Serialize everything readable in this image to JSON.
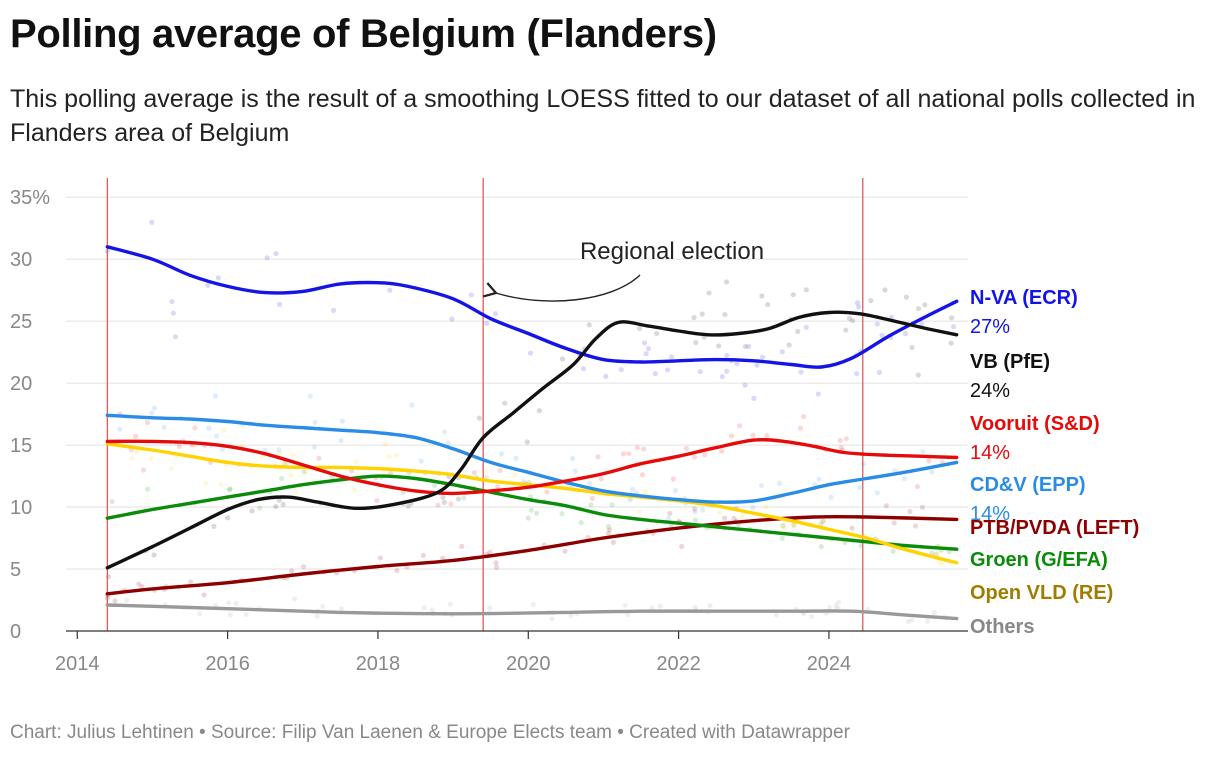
{
  "header": {
    "title": "Polling average of Belgium (Flanders)",
    "subtitle": "This polling average is the result of a smoothing LOESS fitted to our dataset of all national polls collected in Flanders area of Belgium"
  },
  "footer": {
    "text": "Chart: Julius Lehtinen • Source: Filip Van Laenen & Europe Elects team • Created with Datawrapper"
  },
  "chart_data": {
    "type": "line",
    "xlim": [
      2013.85,
      2025.85
    ],
    "ylim": [
      0,
      38
    ],
    "x_ticks": [
      {
        "value": 2014,
        "label": "2014"
      },
      {
        "value": 2016,
        "label": "2016"
      },
      {
        "value": 2018,
        "label": "2018"
      },
      {
        "value": 2020,
        "label": "2020"
      },
      {
        "value": 2022,
        "label": "2022"
      },
      {
        "value": 2024,
        "label": "2024"
      }
    ],
    "y_ticks": [
      {
        "value": 0,
        "label": "0"
      },
      {
        "value": 5,
        "label": "5"
      },
      {
        "value": 10,
        "label": "10"
      },
      {
        "value": 15,
        "label": "15"
      },
      {
        "value": 20,
        "label": "20"
      },
      {
        "value": 25,
        "label": "25"
      },
      {
        "value": 30,
        "label": "30"
      },
      {
        "value": 35,
        "label": "35%"
      }
    ],
    "grid": true,
    "election_lines": [
      2014.4,
      2019.4,
      2024.45
    ],
    "annotation": {
      "text": "Regional election",
      "x": 2019.4,
      "y": 28.5
    },
    "series": [
      {
        "name": "N-VA (ECR)",
        "value_label": "27%",
        "color": "#1414e6",
        "x": [
          2014.4,
          2015.0,
          2015.5,
          2016.0,
          2016.5,
          2017.0,
          2017.5,
          2018.0,
          2018.4,
          2019.0,
          2019.5,
          2020.0,
          2020.5,
          2021.0,
          2021.5,
          2022.0,
          2022.5,
          2023.0,
          2023.5,
          2023.9,
          2024.3,
          2024.8,
          2025.3,
          2025.7
        ],
        "y": [
          31.0,
          30.0,
          28.7,
          27.8,
          27.3,
          27.4,
          28.0,
          28.1,
          27.8,
          26.8,
          25.2,
          24.0,
          22.8,
          21.9,
          21.7,
          21.8,
          21.9,
          21.8,
          21.5,
          21.3,
          22.0,
          23.8,
          25.4,
          26.6
        ]
      },
      {
        "name": "VB (PfE)",
        "value_label": "24%",
        "color": "#111111",
        "x": [
          2014.4,
          2015.0,
          2015.5,
          2016.0,
          2016.4,
          2016.8,
          2017.2,
          2017.7,
          2018.2,
          2018.8,
          2019.1,
          2019.4,
          2019.8,
          2020.2,
          2020.6,
          2020.9,
          2021.2,
          2021.6,
          2022.0,
          2022.4,
          2022.8,
          2023.2,
          2023.6,
          2024.0,
          2024.4,
          2024.8,
          2025.3,
          2025.7
        ],
        "y": [
          5.1,
          6.8,
          8.3,
          9.8,
          10.6,
          10.8,
          10.4,
          9.9,
          10.2,
          11.2,
          13.0,
          15.6,
          17.6,
          19.6,
          21.5,
          23.6,
          24.9,
          24.6,
          24.2,
          23.9,
          24.0,
          24.4,
          25.3,
          25.7,
          25.6,
          25.1,
          24.4,
          23.9
        ]
      },
      {
        "name": "Vooruit (S&D)",
        "value_label": "14%",
        "color": "#e60a0a",
        "x": [
          2014.4,
          2015.0,
          2015.5,
          2016.0,
          2016.5,
          2017.0,
          2017.5,
          2018.0,
          2018.5,
          2019.0,
          2019.5,
          2020.0,
          2020.5,
          2021.0,
          2021.5,
          2022.0,
          2022.5,
          2023.0,
          2023.4,
          2023.8,
          2024.2,
          2024.7,
          2025.2,
          2025.7
        ],
        "y": [
          15.3,
          15.3,
          15.2,
          14.9,
          14.3,
          13.4,
          12.5,
          11.8,
          11.3,
          11.1,
          11.3,
          11.6,
          12.1,
          12.7,
          13.5,
          14.1,
          14.8,
          15.4,
          15.3,
          14.9,
          14.4,
          14.2,
          14.1,
          14.0
        ]
      },
      {
        "name": "CD&V (EPP)",
        "value_label": "14%",
        "color": "#2b8ce6",
        "x": [
          2014.4,
          2015.0,
          2015.5,
          2016.0,
          2016.5,
          2017.0,
          2017.5,
          2018.0,
          2018.5,
          2019.0,
          2019.5,
          2020.0,
          2020.5,
          2021.0,
          2021.5,
          2022.0,
          2022.5,
          2023.0,
          2023.5,
          2024.0,
          2024.5,
          2025.0,
          2025.7
        ],
        "y": [
          17.4,
          17.2,
          17.1,
          16.9,
          16.6,
          16.4,
          16.2,
          16.0,
          15.6,
          14.7,
          13.6,
          12.8,
          12.0,
          11.3,
          10.9,
          10.6,
          10.4,
          10.5,
          11.1,
          11.8,
          12.3,
          12.8,
          13.6
        ]
      },
      {
        "name": "PTB/PVDA (LEFT)",
        "value_label": "",
        "color": "#8c0000",
        "x": [
          2014.4,
          2015.0,
          2016.0,
          2017.0,
          2018.0,
          2019.0,
          2020.0,
          2021.0,
          2022.0,
          2023.0,
          2023.8,
          2024.5,
          2025.7
        ],
        "y": [
          3.0,
          3.4,
          3.9,
          4.6,
          5.2,
          5.7,
          6.5,
          7.5,
          8.3,
          8.9,
          9.2,
          9.2,
          9.0
        ]
      },
      {
        "name": "Groen (G/EFA)",
        "value_label": "",
        "color": "#0a8c0a",
        "x": [
          2014.4,
          2015.0,
          2015.5,
          2016.0,
          2016.5,
          2017.0,
          2017.5,
          2018.0,
          2018.5,
          2019.0,
          2019.5,
          2020.0,
          2020.5,
          2021.0,
          2021.5,
          2022.0,
          2022.5,
          2023.0,
          2023.5,
          2024.0,
          2024.5,
          2025.0,
          2025.7
        ],
        "y": [
          9.1,
          9.8,
          10.3,
          10.8,
          11.3,
          11.8,
          12.2,
          12.5,
          12.3,
          11.8,
          11.2,
          10.6,
          10.1,
          9.4,
          9.0,
          8.7,
          8.4,
          8.1,
          7.8,
          7.5,
          7.2,
          6.9,
          6.6
        ]
      },
      {
        "name": "Open VLD (RE)",
        "value_label": "",
        "color": "#ffd200",
        "x": [
          2014.4,
          2015.0,
          2015.5,
          2016.0,
          2016.5,
          2017.0,
          2017.5,
          2018.0,
          2018.5,
          2019.0,
          2019.5,
          2020.0,
          2020.5,
          2021.0,
          2021.5,
          2022.0,
          2022.5,
          2023.0,
          2023.5,
          2024.0,
          2024.5,
          2025.0,
          2025.7
        ],
        "y": [
          15.1,
          14.6,
          14.1,
          13.6,
          13.3,
          13.2,
          13.2,
          13.1,
          12.9,
          12.6,
          12.1,
          11.8,
          11.5,
          11.1,
          10.8,
          10.5,
          10.1,
          9.5,
          8.9,
          8.2,
          7.5,
          6.6,
          5.5
        ]
      },
      {
        "name": "Others",
        "value_label": "",
        "color": "#999999",
        "x": [
          2014.4,
          2015.5,
          2016.5,
          2017.5,
          2018.5,
          2019.5,
          2020.5,
          2021.5,
          2022.5,
          2023.5,
          2024.3,
          2025.0,
          2025.7
        ],
        "y": [
          2.1,
          1.9,
          1.7,
          1.5,
          1.4,
          1.4,
          1.5,
          1.6,
          1.6,
          1.6,
          1.6,
          1.3,
          1.0
        ]
      }
    ]
  }
}
